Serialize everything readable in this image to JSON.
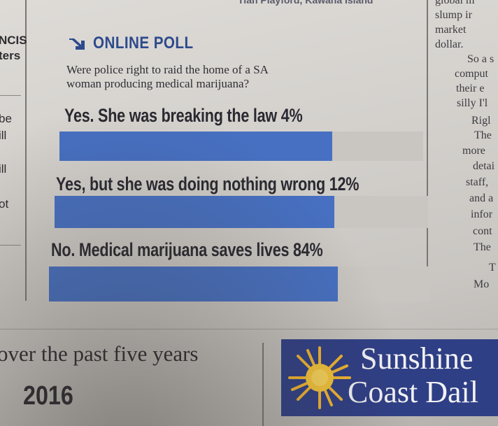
{
  "top_strip": "Tiah Playford, Kawana Island",
  "left_column": {
    "fragments": [
      "NCIS",
      "ters",
      "be",
      "ill",
      "ill",
      "ot"
    ]
  },
  "poll": {
    "header_icon": "arrow-down-right-icon",
    "title": "ONLINE POLL",
    "question": "Were police right to raid the home of a SA woman producing medical marijuana?",
    "options": [
      {
        "label": "Yes. She was breaking the law 4%",
        "percent": 4
      },
      {
        "label": "Yes, but she was doing nothing wrong 12%",
        "percent": 12
      },
      {
        "label": "No. Medical marijuana saves lives 84%",
        "percent": 84
      }
    ],
    "bar_color": "#4770c2"
  },
  "right_column": {
    "lines": [
      "global m",
      "slump ir",
      "market",
      "dollar.",
      "So a s",
      "comput",
      "their e",
      "silly I'l",
      "Rigl",
      "The",
      "more",
      "detai",
      "staff,",
      "and a",
      "infor",
      "cont",
      "The",
      "T",
      "Mo"
    ]
  },
  "bottom": {
    "text": "over the past five years",
    "year": "2016"
  },
  "promo": {
    "line1": "Sunshine",
    "line2": "Coast Dail",
    "background_color": "#2f3f86",
    "sun_icon": "sun-icon"
  }
}
